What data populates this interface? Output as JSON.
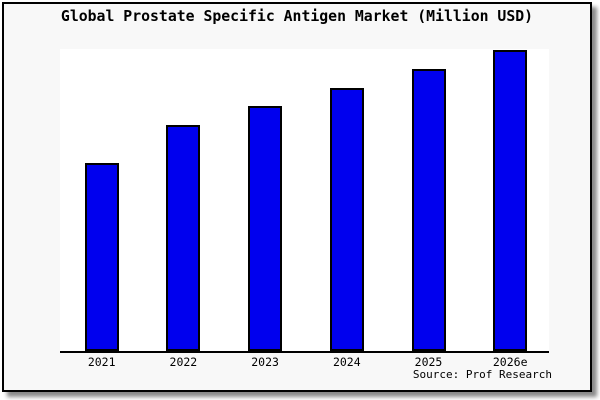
{
  "panel": {
    "outer_background": "#f8f8f8",
    "frame_border_color": "#000000",
    "shadow_color": "#8a8a8a"
  },
  "chart_data": {
    "type": "bar",
    "title": "Global Prostate Specific Antigen Market (Million USD)",
    "categories": [
      "2021",
      "2022",
      "2023",
      "2024",
      "2025",
      "2026e"
    ],
    "values": [
      50,
      60,
      65,
      70,
      75,
      80
    ],
    "values_unit": "relative units (y-axis has no tick labels; heights estimated from pixels)",
    "xlabel": "",
    "ylabel": "",
    "ylim": [
      0,
      80.5
    ],
    "grid": false,
    "legend": false,
    "bar_color": "#0000ee",
    "bar_border_color": "#000000",
    "plot_background": "#ffffff",
    "annotation": "Source: Prof Research"
  }
}
